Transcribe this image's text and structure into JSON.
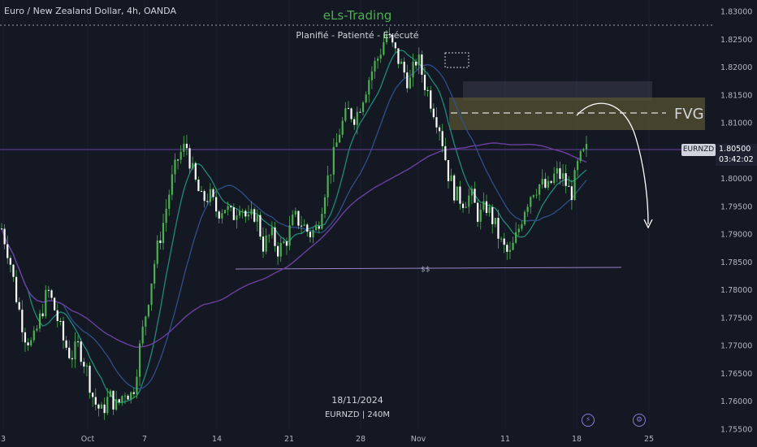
{
  "header": {
    "symbol_title": "Euro / New Zealand Dollar, 4h, OANDA",
    "brand": "eLs-Trading",
    "tagline": "Planifié - Patienté - Exécuté"
  },
  "watermark": {
    "date": "18/11/2024",
    "symbol": "EURNZD | 240M"
  },
  "price_label": {
    "symbol": "EURNZD",
    "price": "1.80500",
    "countdown": "03:42:02"
  },
  "annotations": {
    "fvg_label": "FVG",
    "ss_label": "$$"
  },
  "icons": [
    "lightning-icon",
    "settings-icon"
  ],
  "colors": {
    "background": "#141823",
    "candle": "#4caf50",
    "ma_teal": "#1f8a7a",
    "ma_blue": "#2f4f8a",
    "ma_purple": "#6a3fa0",
    "fvg_zone": "#5a5532"
  },
  "chart_data": {
    "type": "candlestick",
    "title": "Euro / New Zealand Dollar, 4h, OANDA",
    "ylim": [
      1.755,
      1.83
    ],
    "y_ticks": [
      "1.83000",
      "1.82500",
      "1.82000",
      "1.81500",
      "1.81000",
      "1.80500",
      "1.80000",
      "1.79500",
      "1.79000",
      "1.78500",
      "1.78000",
      "1.77500",
      "1.77000",
      "1.76500",
      "1.76000",
      "1.75500"
    ],
    "x_ticks": [
      "3",
      "Oct",
      "7",
      "14",
      "21",
      "28",
      "Nov",
      "11",
      "18",
      "25"
    ],
    "last_price": 1.805,
    "fvg_zone": [
      1.809,
      1.8145
    ],
    "fvg_mid": 1.812,
    "upper_zone": [
      1.8143,
      1.8175
    ],
    "ss_level": 1.7838,
    "series": [
      {
        "name": "close",
        "values": [
          1.791,
          1.786,
          1.778,
          1.772,
          1.77,
          1.775,
          1.78,
          1.776,
          1.771,
          1.768,
          1.77,
          1.766,
          1.76,
          1.758,
          1.761,
          1.759,
          1.762,
          1.761,
          1.77,
          1.778,
          1.786,
          1.792,
          1.799,
          1.804,
          1.806,
          1.8,
          1.796,
          1.797,
          1.794,
          1.795,
          1.793,
          1.796,
          1.792,
          1.794,
          1.788,
          1.79,
          1.787,
          1.789,
          1.793,
          1.792,
          1.79,
          1.791,
          1.798,
          1.803,
          1.809,
          1.812,
          1.811,
          1.815,
          1.819,
          1.822,
          1.826,
          1.823,
          1.82,
          1.817,
          1.822,
          1.817,
          1.813,
          1.809,
          1.801,
          1.797,
          1.796,
          1.797,
          1.793,
          1.795,
          1.792,
          1.788,
          1.786,
          1.79,
          1.795,
          1.798,
          1.799,
          1.798,
          1.801,
          1.8,
          1.797,
          1.803,
          1.805
        ]
      }
    ]
  }
}
